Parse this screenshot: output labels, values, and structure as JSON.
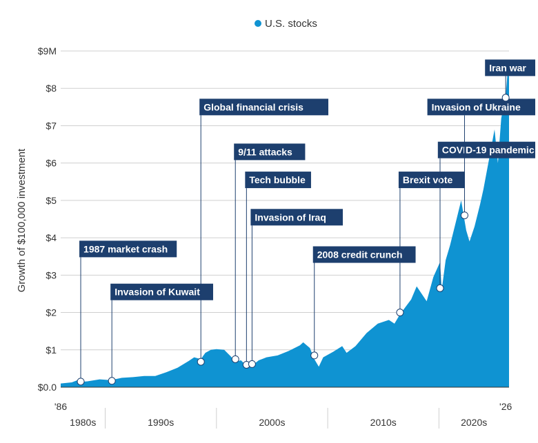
{
  "chart_data": {
    "type": "area",
    "legend": {
      "position": "top-center"
    },
    "series": [
      {
        "name": "U.S. stocks",
        "color": "#0f93d2",
        "points": [
          [
            1986.0,
            0.1
          ],
          [
            1987.0,
            0.13
          ],
          [
            1987.6,
            0.2
          ],
          [
            1987.8,
            0.14
          ],
          [
            1988.5,
            0.16
          ],
          [
            1989.5,
            0.21
          ],
          [
            1990.5,
            0.19
          ],
          [
            1991.5,
            0.25
          ],
          [
            1992.5,
            0.27
          ],
          [
            1993.5,
            0.3
          ],
          [
            1994.5,
            0.3
          ],
          [
            1995.5,
            0.4
          ],
          [
            1996.5,
            0.52
          ],
          [
            1997.5,
            0.7
          ],
          [
            1998.0,
            0.8
          ],
          [
            1998.6,
            0.75
          ],
          [
            1999.0,
            0.92
          ],
          [
            1999.5,
            1.0
          ],
          [
            2000.0,
            1.02
          ],
          [
            2000.7,
            1.0
          ],
          [
            2001.3,
            0.82
          ],
          [
            2001.7,
            0.68
          ],
          [
            2002.2,
            0.72
          ],
          [
            2002.8,
            0.55
          ],
          [
            2003.2,
            0.58
          ],
          [
            2003.8,
            0.72
          ],
          [
            2004.5,
            0.8
          ],
          [
            2005.5,
            0.85
          ],
          [
            2006.5,
            0.97
          ],
          [
            2007.5,
            1.12
          ],
          [
            2007.8,
            1.2
          ],
          [
            2008.4,
            1.05
          ],
          [
            2008.8,
            0.75
          ],
          [
            2009.2,
            0.55
          ],
          [
            2009.6,
            0.8
          ],
          [
            2010.5,
            0.95
          ],
          [
            2011.3,
            1.1
          ],
          [
            2011.7,
            0.92
          ],
          [
            2012.5,
            1.1
          ],
          [
            2013.5,
            1.45
          ],
          [
            2014.5,
            1.7
          ],
          [
            2015.5,
            1.8
          ],
          [
            2016.0,
            1.7
          ],
          [
            2016.5,
            1.95
          ],
          [
            2017.5,
            2.35
          ],
          [
            2018.0,
            2.7
          ],
          [
            2018.9,
            2.3
          ],
          [
            2019.5,
            2.95
          ],
          [
            2020.1,
            3.35
          ],
          [
            2020.25,
            2.6
          ],
          [
            2020.6,
            3.4
          ],
          [
            2021.0,
            3.8
          ],
          [
            2021.5,
            4.4
          ],
          [
            2022.0,
            5.0
          ],
          [
            2022.45,
            4.2
          ],
          [
            2022.75,
            3.9
          ],
          [
            2023.2,
            4.3
          ],
          [
            2023.7,
            4.9
          ],
          [
            2024.0,
            5.3
          ],
          [
            2024.5,
            6.1
          ],
          [
            2025.0,
            6.9
          ],
          [
            2025.3,
            6.0
          ],
          [
            2025.6,
            7.2
          ],
          [
            2026.0,
            7.8
          ],
          [
            2026.2,
            8.55
          ],
          [
            2026.3,
            8.3
          ]
        ]
      }
    ],
    "y_axis": {
      "ylabel": "Growth of $100,000 investment",
      "ylim": [
        0,
        9
      ],
      "grid": true,
      "ticks": [
        {
          "value": 0,
          "label": "$0.0"
        },
        {
          "value": 1,
          "label": "$1"
        },
        {
          "value": 2,
          "label": "$2"
        },
        {
          "value": 3,
          "label": "$3"
        },
        {
          "value": 4,
          "label": "$4"
        },
        {
          "value": 5,
          "label": "$5"
        },
        {
          "value": 6,
          "label": "$6"
        },
        {
          "value": 7,
          "label": "$7"
        },
        {
          "value": 8,
          "label": "$8"
        },
        {
          "value": 9,
          "label": "$9M"
        }
      ]
    },
    "x_axis": {
      "xlim": [
        1986.0,
        2026.3
      ],
      "ticks": [
        {
          "value": 1986.0,
          "label": "'86"
        },
        {
          "value": 2026.0,
          "label": "'26"
        }
      ],
      "decades": [
        {
          "label": "1980s",
          "start": 1986.0,
          "end": 1990.0
        },
        {
          "label": "1990s",
          "start": 1990.0,
          "end": 2000.0
        },
        {
          "label": "2000s",
          "start": 2000.0,
          "end": 2010.0
        },
        {
          "label": "2010s",
          "start": 2010.0,
          "end": 2020.0
        },
        {
          "label": "2020s",
          "start": 2020.0,
          "end": 2026.3
        }
      ]
    },
    "annotations": [
      {
        "label": "1987 market crash",
        "x": 1987.8,
        "y": 0.15,
        "label_level": 3.7
      },
      {
        "label": "Invasion of Kuwait",
        "x": 1990.6,
        "y": 0.17,
        "label_level": 2.55
      },
      {
        "label": "Global financial crisis",
        "x": 1998.6,
        "y": 0.68,
        "label_level": 7.5
      },
      {
        "label": "9/11 attacks",
        "x": 2001.7,
        "y": 0.75,
        "label_level": 6.3
      },
      {
        "label": "Tech bubble",
        "x": 2002.7,
        "y": 0.6,
        "label_level": 5.55
      },
      {
        "label": "Invasion of Iraq",
        "x": 2003.2,
        "y": 0.62,
        "label_level": 4.55
      },
      {
        "label": "2008 credit crunch",
        "x": 2008.8,
        "y": 0.85,
        "label_level": 3.55
      },
      {
        "label": "Brexit vote",
        "x": 2016.5,
        "y": 2.0,
        "label_level": 5.55
      },
      {
        "label": "COVID-19 pandemic",
        "x": 2020.1,
        "y": 2.65,
        "label_level": 6.35
      },
      {
        "label": "Invasion of Ukraine",
        "x": 2022.3,
        "y": 4.6,
        "label_level": 7.5
      },
      {
        "label": "Iran war",
        "x": 2026.0,
        "y": 7.75,
        "label_level": 8.55
      }
    ]
  }
}
